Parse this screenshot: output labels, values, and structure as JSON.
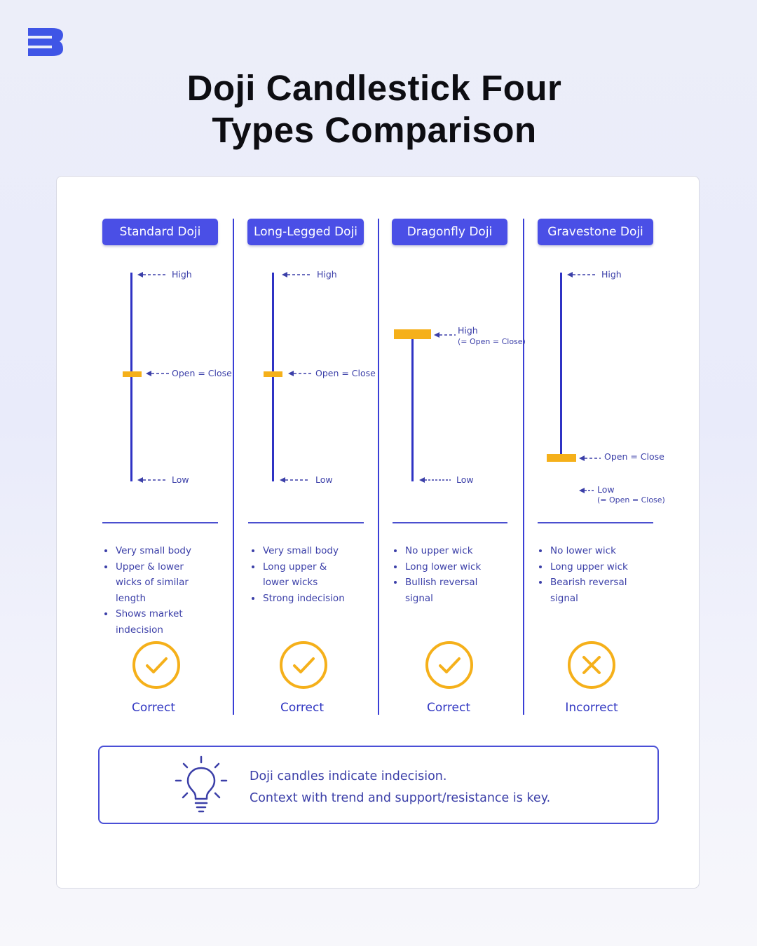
{
  "brand": {
    "logo_icon": "brand-logo-icon",
    "color": "#3f55e6"
  },
  "title": {
    "line1": "Doji Candlestick Four",
    "line2": "Types Comparison"
  },
  "colors": {
    "accent": "#4a4fe6",
    "wick": "#2f33c4",
    "body": "#f5b01a",
    "text": "#3b3fa8",
    "verdict_ring": "#f5b01a"
  },
  "types": [
    {
      "name": "Standard Doji",
      "high": "High",
      "open_close": "Open = Close",
      "low": "Low",
      "bullets": [
        "Very small body",
        "Upper & lower wicks of similar length",
        "Shows market indecision"
      ],
      "verdict": "Correct",
      "verdict_icon": "check-icon"
    },
    {
      "name": "Long-Legged Doji",
      "high": "High",
      "open_close": "Open = Close",
      "low": "Low",
      "bullets": [
        "Very small body",
        "Long upper & lower wicks",
        "Strong indecision"
      ],
      "verdict": "Correct",
      "verdict_icon": "check-icon"
    },
    {
      "name": "Dragonfly Doji",
      "high": "High",
      "high_sub": "(= Open = Close)",
      "low": "Low",
      "bullets": [
        "No upper wick",
        "Long lower wick",
        "Bullish reversal signal"
      ],
      "verdict": "Correct",
      "verdict_icon": "check-icon"
    },
    {
      "name": "Gravestone Doji",
      "high": "High",
      "open_close": "Open = Close",
      "low": "Low",
      "low_sub": "(= Open = Close)",
      "bullets": [
        "No lower wick",
        "Long upper wick",
        "Bearish reversal signal"
      ],
      "verdict": "Incorrect",
      "verdict_icon": "x-icon"
    }
  ],
  "note": {
    "icon": "lightbulb-icon",
    "line1": "Doji candles indicate indecision.",
    "line2": "Context with trend and support/resistance is key."
  }
}
